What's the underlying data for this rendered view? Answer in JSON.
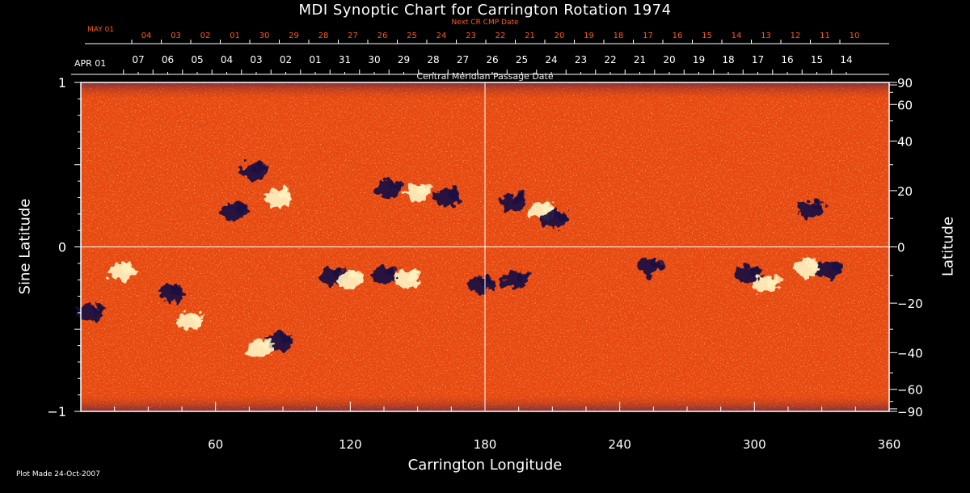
{
  "chart_data": {
    "type": "heatmap",
    "title": "MDI Synoptic Chart for Carrington Rotation 1974",
    "xlabel": "Carrington Longitude",
    "ylabel_left": "Sine Latitude",
    "ylabel_right": "Latitude",
    "xlim": [
      0,
      360
    ],
    "ylim": [
      -1,
      1
    ],
    "x_ticks": [
      60,
      120,
      180,
      240,
      300,
      360
    ],
    "y_ticks_left": [
      {
        "label": "1",
        "value": 1
      },
      {
        "label": "0",
        "value": 0
      },
      {
        "label": "−1",
        "value": -1
      }
    ],
    "y_ticks_right": [
      {
        "label": "90",
        "deg": 90
      },
      {
        "label": "60",
        "deg": 60
      },
      {
        "label": "40",
        "deg": 40
      },
      {
        "label": "20",
        "deg": 20
      },
      {
        "label": "0",
        "deg": 0
      },
      {
        "label": "−20",
        "deg": -20
      },
      {
        "label": "−40",
        "deg": -40
      },
      {
        "label": "−60",
        "deg": -60
      },
      {
        "label": "−90",
        "deg": -90
      }
    ],
    "top_axis_label": "Central Meridian Passage Date",
    "top_axis_start_label": "APR 01",
    "top_axis_dates": [
      "07",
      "06",
      "05",
      "04",
      "03",
      "02",
      "01",
      "31",
      "30",
      "29",
      "28",
      "27",
      "26",
      "25",
      "24",
      "23",
      "22",
      "21",
      "20",
      "19",
      "18",
      "17",
      "16",
      "15",
      "14"
    ],
    "next_axis_label": "Next CR CMP Date",
    "next_axis_start_label": "MAY 01",
    "next_axis_dates": [
      "04",
      "03",
      "02",
      "01",
      "30",
      "29",
      "28",
      "27",
      "26",
      "25",
      "24",
      "23",
      "22",
      "21",
      "20",
      "19",
      "18",
      "17",
      "16",
      "15",
      "14",
      "13",
      "12",
      "11",
      "10"
    ],
    "grid_lines": {
      "longitude": [
        180
      ],
      "sine_latitude": [
        0
      ]
    },
    "colors": {
      "background": "#000000",
      "field_base": "#e8480f",
      "positive_polarity": "#fff2c0",
      "negative_polarity": "#1a1042",
      "next_axis_text": "#ff5a1a"
    },
    "active_regions": [
      {
        "lon": 77,
        "sinlat": 0.46,
        "polarity": "negative"
      },
      {
        "lon": 68,
        "sinlat": 0.22,
        "polarity": "negative"
      },
      {
        "lon": 88,
        "sinlat": 0.3,
        "polarity": "positive"
      },
      {
        "lon": 137,
        "sinlat": 0.35,
        "polarity": "negative"
      },
      {
        "lon": 150,
        "sinlat": 0.33,
        "polarity": "positive"
      },
      {
        "lon": 163,
        "sinlat": 0.3,
        "polarity": "negative"
      },
      {
        "lon": 192,
        "sinlat": 0.27,
        "polarity": "negative"
      },
      {
        "lon": 205,
        "sinlat": 0.22,
        "polarity": "positive"
      },
      {
        "lon": 211,
        "sinlat": 0.17,
        "polarity": "negative"
      },
      {
        "lon": 325,
        "sinlat": 0.23,
        "polarity": "negative"
      },
      {
        "lon": 112,
        "sinlat": -0.18,
        "polarity": "negative"
      },
      {
        "lon": 120,
        "sinlat": -0.2,
        "polarity": "positive"
      },
      {
        "lon": 135,
        "sinlat": -0.17,
        "polarity": "negative"
      },
      {
        "lon": 145,
        "sinlat": -0.2,
        "polarity": "positive"
      },
      {
        "lon": 178,
        "sinlat": -0.23,
        "polarity": "negative"
      },
      {
        "lon": 193,
        "sinlat": -0.2,
        "polarity": "negative"
      },
      {
        "lon": 253,
        "sinlat": -0.12,
        "polarity": "negative"
      },
      {
        "lon": 297,
        "sinlat": -0.17,
        "polarity": "negative"
      },
      {
        "lon": 305,
        "sinlat": -0.23,
        "polarity": "positive"
      },
      {
        "lon": 333,
        "sinlat": -0.14,
        "polarity": "negative"
      },
      {
        "lon": 323,
        "sinlat": -0.13,
        "polarity": "positive"
      },
      {
        "lon": 18,
        "sinlat": -0.15,
        "polarity": "positive"
      },
      {
        "lon": 4,
        "sinlat": -0.4,
        "polarity": "negative"
      },
      {
        "lon": 88,
        "sinlat": -0.58,
        "polarity": "negative"
      },
      {
        "lon": 80,
        "sinlat": -0.62,
        "polarity": "positive"
      },
      {
        "lon": 40,
        "sinlat": -0.28,
        "polarity": "negative"
      },
      {
        "lon": 48,
        "sinlat": -0.45,
        "polarity": "positive"
      }
    ]
  },
  "footer": {
    "plot_made": "Plot Made 24-Oct-2007"
  }
}
